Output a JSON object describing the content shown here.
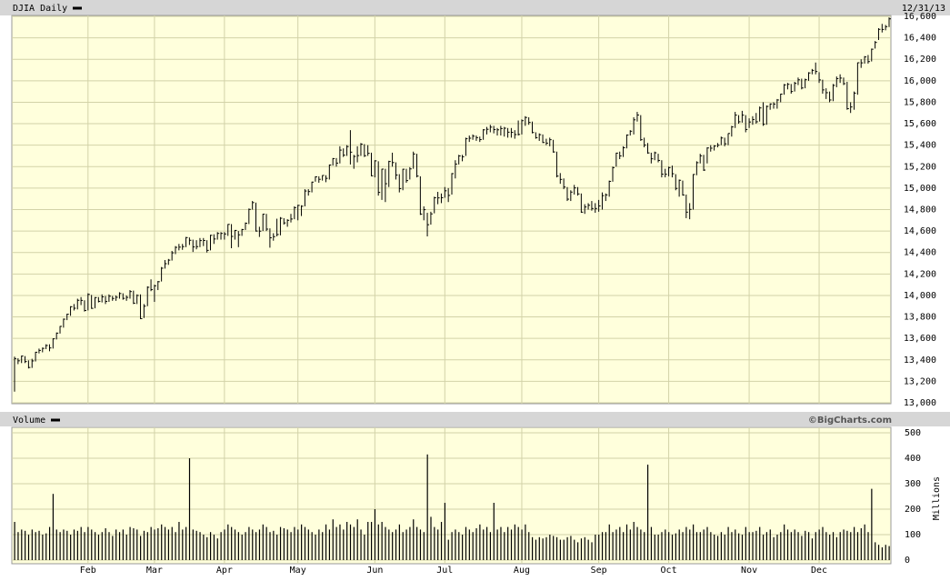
{
  "chart_data": [
    {
      "type": "ohlc",
      "title": "DJIA Daily",
      "date": "12/31/13",
      "color": "#000000",
      "grid": true,
      "xlim": [
        0,
        250
      ],
      "xticks": [
        21,
        40,
        60,
        81,
        103,
        123,
        145,
        167,
        187,
        210,
        230
      ],
      "ylim": [
        13000,
        16600
      ],
      "yticks": [
        {
          "value": 13000,
          "label": "13,000"
        },
        {
          "value": 13200,
          "label": "13,200"
        },
        {
          "value": 13400,
          "label": "13,400"
        },
        {
          "value": 13600,
          "label": "13,600"
        },
        {
          "value": 13800,
          "label": "13,800"
        },
        {
          "value": 14000,
          "label": "14,000"
        },
        {
          "value": 14200,
          "label": "14,200"
        },
        {
          "value": 14400,
          "label": "14,400"
        },
        {
          "value": 14600,
          "label": "14,600"
        },
        {
          "value": 14800,
          "label": "14,800"
        },
        {
          "value": 15000,
          "label": "15,000"
        },
        {
          "value": 15200,
          "label": "15,200"
        },
        {
          "value": 15400,
          "label": "15,400"
        },
        {
          "value": 15600,
          "label": "15,600"
        },
        {
          "value": 15800,
          "label": "15,800"
        },
        {
          "value": 16000,
          "label": "16,000"
        },
        {
          "value": 16200,
          "label": "16,200"
        },
        {
          "value": 16400,
          "label": "16,400"
        },
        {
          "value": 16600,
          "label": "16,600"
        }
      ],
      "high": [
        13430,
        13415,
        13440,
        13435,
        13395,
        13410,
        13475,
        13505,
        13515,
        13545,
        13545,
        13600,
        13655,
        13715,
        13785,
        13830,
        13900,
        13920,
        13970,
        13985,
        13955,
        14020,
        14005,
        13985,
        13985,
        14010,
        13995,
        14010,
        13995,
        14000,
        14030,
        14020,
        14000,
        14050,
        14045,
        14010,
        14010,
        13920,
        14085,
        14150,
        14100,
        14135,
        14265,
        14330,
        14340,
        14415,
        14460,
        14480,
        14480,
        14545,
        14540,
        14520,
        14515,
        14535,
        14535,
        14515,
        14565,
        14570,
        14590,
        14590,
        14590,
        14665,
        14665,
        14610,
        14600,
        14620,
        14680,
        14810,
        14880,
        14865,
        14640,
        14760,
        14760,
        14625,
        14580,
        14715,
        14730,
        14720,
        14710,
        14760,
        14830,
        14845,
        14840,
        14990,
        14990,
        15060,
        15110,
        15110,
        15120,
        15120,
        15220,
        15280,
        15280,
        15390,
        15370,
        15400,
        15540,
        15310,
        15390,
        15420,
        15410,
        15400,
        15330,
        15260,
        15250,
        15180,
        15180,
        15255,
        15330,
        15240,
        15130,
        15180,
        15180,
        15195,
        15340,
        15320,
        15110,
        14830,
        14770,
        14780,
        14920,
        14965,
        14950,
        15010,
        15000,
        15140,
        15260,
        15310,
        15310,
        15470,
        15490,
        15500,
        15490,
        15480,
        15550,
        15570,
        15590,
        15580,
        15560,
        15580,
        15570,
        15560,
        15560,
        15540,
        15630,
        15640,
        15670,
        15660,
        15620,
        15520,
        15510,
        15500,
        15460,
        15470,
        15450,
        15340,
        15140,
        15090,
        15010,
        14980,
        15030,
        15010,
        14950,
        14850,
        14860,
        14880,
        14860,
        14890,
        14960,
        14950,
        15070,
        15200,
        15330,
        15340,
        15390,
        15500,
        15540,
        15660,
        15710,
        15680,
        15470,
        15420,
        15330,
        15340,
        15320,
        15260,
        15180,
        15200,
        15210,
        15130,
        15080,
        15070,
        14940,
        14860,
        15130,
        15250,
        15320,
        15310,
        15380,
        15400,
        15400,
        15420,
        15480,
        15470,
        15510,
        15580,
        15710,
        15680,
        15720,
        15680,
        15650,
        15670,
        15700,
        15760,
        15800,
        15770,
        15790,
        15800,
        15830,
        15880,
        15970,
        15980,
        15970,
        15990,
        16030,
        16020,
        16020,
        16080,
        16110,
        16170,
        16080,
        16010,
        15930,
        15900,
        15970,
        16040,
        16060,
        16030,
        15990,
        15800,
        15900,
        16170,
        16200,
        16230,
        16240,
        16300,
        16370,
        16490,
        16530,
        16520,
        16590
      ],
      "low": [
        13104,
        13360,
        13370,
        13370,
        13320,
        13325,
        13385,
        13460,
        13470,
        13500,
        13480,
        13505,
        13590,
        13645,
        13700,
        13770,
        13810,
        13860,
        13870,
        13910,
        13850,
        13860,
        13875,
        13880,
        13935,
        13935,
        13920,
        13940,
        13950,
        13950,
        13970,
        13960,
        13950,
        13970,
        13920,
        13920,
        13780,
        13790,
        13900,
        14040,
        13940,
        14050,
        14130,
        14250,
        14285,
        14325,
        14385,
        14420,
        14425,
        14450,
        14470,
        14405,
        14430,
        14450,
        14460,
        14400,
        14420,
        14480,
        14520,
        14520,
        14520,
        14555,
        14440,
        14520,
        14450,
        14555,
        14610,
        14665,
        14800,
        14595,
        14545,
        14600,
        14600,
        14445,
        14510,
        14550,
        14560,
        14660,
        14640,
        14680,
        14710,
        14700,
        14740,
        14830,
        14930,
        14960,
        15060,
        15050,
        15070,
        15055,
        15080,
        15210,
        15200,
        15230,
        15290,
        15300,
        15220,
        15180,
        15240,
        15300,
        15290,
        15300,
        15110,
        15100,
        14930,
        14890,
        14870,
        15010,
        15200,
        15080,
        14960,
        14980,
        15050,
        15080,
        15180,
        15100,
        14750,
        14700,
        14550,
        14660,
        14765,
        14850,
        14860,
        14910,
        14870,
        14940,
        15090,
        15220,
        15250,
        15300,
        15430,
        15450,
        15440,
        15430,
        15450,
        15500,
        15520,
        15510,
        15490,
        15490,
        15480,
        15470,
        15470,
        15460,
        15490,
        15500,
        15580,
        15590,
        15510,
        15460,
        15440,
        15420,
        15400,
        15390,
        15330,
        15100,
        15040,
        14990,
        14880,
        14880,
        14940,
        14930,
        14770,
        14760,
        14800,
        14790,
        14770,
        14780,
        14800,
        14880,
        14920,
        15060,
        15200,
        15270,
        15290,
        15370,
        15490,
        15500,
        15620,
        15440,
        15380,
        15320,
        15230,
        15260,
        15240,
        15100,
        15100,
        15110,
        15100,
        14980,
        14920,
        14930,
        14720,
        14710,
        14800,
        15120,
        15230,
        15160,
        15230,
        15340,
        15350,
        15380,
        15400,
        15390,
        15400,
        15480,
        15560,
        15600,
        15610,
        15520,
        15560,
        15590,
        15600,
        15620,
        15580,
        15590,
        15730,
        15740,
        15740,
        15800,
        15870,
        15920,
        15880,
        15900,
        15960,
        15920,
        15930,
        16000,
        16060,
        16060,
        15980,
        15880,
        15830,
        15800,
        15810,
        15940,
        15980,
        15960,
        15730,
        15700,
        15730,
        15870,
        16120,
        16160,
        16160,
        16180,
        16300,
        16380,
        16450,
        16470,
        16500
      ],
      "close": [
        13412,
        13391,
        13435,
        13384,
        13329,
        13390,
        13471,
        13488,
        13507,
        13534,
        13511,
        13596,
        13649,
        13712,
        13779,
        13825,
        13895,
        13881,
        13955,
        13954,
        13860,
        14010,
        13880,
        13980,
        13945,
        13987,
        13944,
        13993,
        13972,
        13983,
        14018,
        13973,
        13982,
        14036,
        13928,
        14000,
        13784,
        13900,
        14076,
        14054,
        14090,
        14128,
        14254,
        14296,
        14329,
        14397,
        14448,
        14450,
        14455,
        14539,
        14514,
        14452,
        14455,
        14511,
        14512,
        14420,
        14560,
        14526,
        14578,
        14578,
        14573,
        14662,
        14550,
        14606,
        14565,
        14614,
        14673,
        14802,
        14865,
        14600,
        14599,
        14757,
        14618,
        14537,
        14548,
        14568,
        14719,
        14676,
        14700,
        14712,
        14818,
        14839,
        14831,
        14973,
        14968,
        15056,
        15105,
        15082,
        15118,
        15091,
        15215,
        15275,
        15233,
        15354,
        15307,
        15387,
        15335,
        15295,
        15303,
        15409,
        15302,
        15324,
        15115,
        15254,
        14960,
        15177,
        15041,
        15248,
        15238,
        15122,
        14995,
        15176,
        15070,
        15179,
        15318,
        15112,
        14758,
        14799,
        14659,
        14760,
        14910,
        14909,
        14910,
        14975,
        14932,
        15135,
        15224,
        15300,
        15292,
        15460,
        15465,
        15484,
        15470,
        15452,
        15543,
        15548,
        15568,
        15545,
        15543,
        15555,
        15558,
        15521,
        15520,
        15499,
        15500,
        15628,
        15658,
        15612,
        15518,
        15470,
        15498,
        15425,
        15419,
        15451,
        15337,
        15112,
        15081,
        15010,
        14897,
        14963,
        15002,
        14946,
        14776,
        14824,
        14840,
        14810,
        14810,
        14834,
        14930,
        14937,
        15063,
        15191,
        15326,
        15300,
        15376,
        15494,
        15530,
        15636,
        15681,
        15451,
        15401,
        15328,
        15273,
        15329,
        15258,
        15130,
        15129,
        15191,
        15134,
        14997,
        15073,
        14936,
        14776,
        14802,
        15127,
        15237,
        15301,
        15168,
        15374,
        15372,
        15392,
        15400,
        15467,
        15413,
        15509,
        15570,
        15680,
        15618,
        15680,
        15546,
        15616,
        15639,
        15618,
        15747,
        15594,
        15761,
        15784,
        15783,
        15821,
        15876,
        15962,
        15967,
        15900,
        15976,
        16009,
        15933,
        16010,
        16073,
        16097,
        16086,
        16008,
        15915,
        15889,
        15821,
        15957,
        16020,
        16025,
        15973,
        15740,
        15756,
        15885,
        16168,
        16167,
        16222,
        16179,
        16294,
        16357,
        16479,
        16478,
        16504,
        16577
      ]
    },
    {
      "type": "bar",
      "title": "Volume",
      "credit": "©BigCharts.com",
      "y_label": "Millions",
      "color": "#000000",
      "grid": true,
      "xlim": [
        0,
        250
      ],
      "xticks": [
        {
          "value": 21,
          "label": "Feb"
        },
        {
          "value": 40,
          "label": "Mar"
        },
        {
          "value": 60,
          "label": "Apr"
        },
        {
          "value": 81,
          "label": "May"
        },
        {
          "value": 103,
          "label": "Jun"
        },
        {
          "value": 123,
          "label": "Jul"
        },
        {
          "value": 145,
          "label": "Aug"
        },
        {
          "value": 167,
          "label": "Sep"
        },
        {
          "value": 187,
          "label": "Oct"
        },
        {
          "value": 210,
          "label": "Nov"
        },
        {
          "value": 230,
          "label": "Dec"
        }
      ],
      "ylim": [
        0,
        500
      ],
      "yticks": [
        0,
        100,
        200,
        300,
        400,
        500
      ],
      "values": [
        150,
        110,
        120,
        115,
        100,
        120,
        110,
        115,
        100,
        105,
        130,
        260,
        120,
        110,
        120,
        115,
        100,
        120,
        115,
        130,
        110,
        130,
        120,
        110,
        100,
        110,
        125,
        110,
        95,
        120,
        110,
        120,
        100,
        130,
        125,
        120,
        95,
        115,
        110,
        130,
        120,
        125,
        140,
        130,
        120,
        130,
        110,
        150,
        120,
        130,
        400,
        120,
        115,
        110,
        100,
        90,
        110,
        100,
        85,
        110,
        120,
        140,
        130,
        120,
        110,
        100,
        110,
        130,
        120,
        110,
        120,
        140,
        130,
        110,
        115,
        100,
        130,
        125,
        120,
        110,
        130,
        120,
        140,
        130,
        120,
        110,
        100,
        120,
        110,
        140,
        120,
        160,
        130,
        140,
        120,
        150,
        140,
        130,
        160,
        120,
        100,
        150,
        150,
        200,
        140,
        150,
        130,
        120,
        110,
        120,
        140,
        110,
        120,
        130,
        160,
        130,
        120,
        110,
        415,
        170,
        130,
        120,
        150,
        225,
        80,
        110,
        120,
        110,
        100,
        130,
        120,
        110,
        125,
        140,
        120,
        130,
        110,
        225,
        120,
        130,
        110,
        130,
        120,
        140,
        130,
        120,
        140,
        110,
        90,
        80,
        90,
        85,
        90,
        100,
        95,
        90,
        80,
        80,
        90,
        95,
        80,
        70,
        85,
        90,
        80,
        70,
        100,
        100,
        110,
        110,
        140,
        110,
        120,
        130,
        110,
        140,
        120,
        150,
        130,
        120,
        110,
        375,
        130,
        100,
        100,
        110,
        120,
        110,
        100,
        105,
        120,
        110,
        130,
        120,
        140,
        110,
        110,
        120,
        130,
        110,
        100,
        95,
        110,
        100,
        130,
        110,
        120,
        105,
        100,
        130,
        110,
        110,
        115,
        130,
        100,
        110,
        120,
        90,
        100,
        110,
        140,
        120,
        110,
        120,
        110,
        95,
        115,
        110,
        85,
        110,
        120,
        130,
        110,
        100,
        110,
        90,
        110,
        120,
        115,
        110,
        130,
        110,
        125,
        140,
        110,
        280,
        70,
        60,
        50,
        60,
        55
      ]
    }
  ]
}
